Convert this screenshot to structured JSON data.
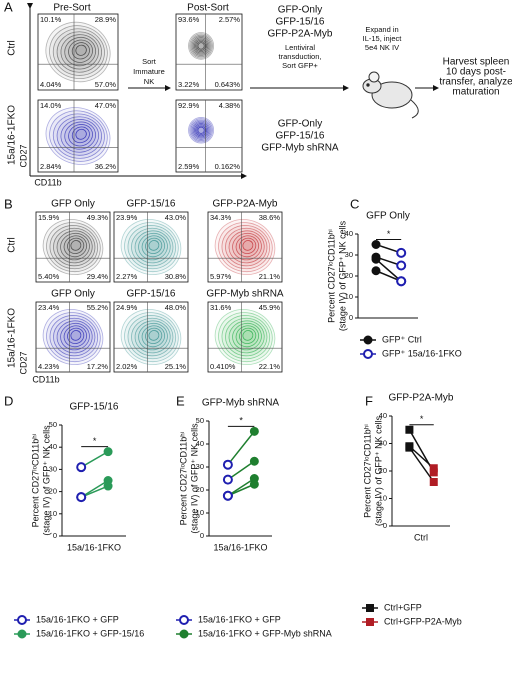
{
  "panel_a": {
    "label": "A",
    "pre_sort_title": "Pre-Sort",
    "post_sort_title": "Post-Sort",
    "row_labels": [
      "Ctrl",
      "15a/16-1FKO"
    ],
    "y_axis_label": "CD27",
    "x_axis_label": "CD11b",
    "sort_step": [
      "Sort",
      "Immature",
      "NK"
    ],
    "constructs_top": [
      "GFP-Only",
      "GFP-15/16",
      "GFP-P2A-Myb"
    ],
    "constructs_bottom": [
      "GFP-Only",
      "GFP-15/16",
      "GFP-Myb shRNA"
    ],
    "transduction_step": [
      "Lentiviral",
      "transduction,",
      "Sort GFP+"
    ],
    "expand_step": [
      "Expand in",
      "IL-15, inject",
      "5e4 NK IV"
    ],
    "harvest_step": [
      "Harvest spleen",
      "10 days post-",
      "transfer, analyze",
      "maturation"
    ],
    "plots": [
      {
        "quadrants": [
          "10.1%",
          "28.9%",
          "4.04%",
          "57.0%"
        ]
      },
      {
        "quadrants": [
          "93.6%",
          "2.57%",
          "3.22%",
          "0.643%"
        ]
      },
      {
        "quadrants": [
          "14.0%",
          "47.0%",
          "2.84%",
          "36.2%"
        ]
      },
      {
        "quadrants": [
          "92.9%",
          "4.38%",
          "2.59%",
          "0.162%"
        ]
      }
    ]
  },
  "panel_b": {
    "label": "B",
    "row_labels": [
      "Ctrl",
      "15a/16-1FKO"
    ],
    "y_axis_label": "CD27",
    "x_axis_label": "CD11b",
    "plots": [
      {
        "title": "GFP Only",
        "quadrants": [
          "15.9%",
          "49.3%",
          "5.40%",
          "29.4%"
        ]
      },
      {
        "title": "GFP-15/16",
        "quadrants": [
          "23.9%",
          "43.0%",
          "2.27%",
          "30.8%"
        ]
      },
      {
        "title": "GFP-P2A-Myb",
        "quadrants": [
          "34.3%",
          "38.6%",
          "5.97%",
          "21.1%"
        ]
      },
      {
        "title": "GFP Only",
        "quadrants": [
          "23.4%",
          "55.2%",
          "4.23%",
          "17.2%"
        ]
      },
      {
        "title": "GFP-15/16",
        "quadrants": [
          "24.9%",
          "48.0%",
          "2.02%",
          "25.1%"
        ]
      },
      {
        "title": "GFP-Myb shRNA",
        "quadrants": [
          "31.6%",
          "45.9%",
          "0.410%",
          "22.1%"
        ]
      }
    ]
  },
  "chart_data": [
    {
      "type": "paired",
      "label": "C",
      "title": "GFP Only",
      "ylabel": [
        "Percent CD27ˡᵒCD11bʰⁱ",
        "(stage IV) of GFP⁺ NK cells"
      ],
      "ylim": [
        0,
        40
      ],
      "yticks": [
        0,
        10,
        20,
        30,
        40
      ],
      "significance": "*",
      "pair_line_color": "#111",
      "series": [
        {
          "name": "GFP⁺ Ctrl",
          "color": "#111",
          "marker": "circle",
          "filled": true,
          "values": [
            35,
            29,
            28,
            22.5
          ]
        },
        {
          "name": "GFP⁺ 15a/16-1FKO",
          "color": "#1f1fb0",
          "marker": "circle",
          "filled": false,
          "values": [
            31,
            25,
            17.5,
            17.5
          ]
        }
      ]
    },
    {
      "type": "paired",
      "label": "D",
      "title": "GFP-15/16",
      "xlabel": "15a/16-1FKO",
      "ylabel": [
        "Percent CD27ˡᵒCD11bʰⁱ",
        "(stage IV) of GFP⁺ NK cells"
      ],
      "ylim": [
        0,
        50
      ],
      "yticks": [
        0,
        10,
        20,
        30,
        40,
        50
      ],
      "significance": "*",
      "pair_line_color": "#2a9a58",
      "series": [
        {
          "name": "15a/16-1FKO + GFP",
          "color": "#1f1fb0",
          "marker": "circle",
          "filled": false,
          "values": [
            31,
            17.5,
            17.5
          ]
        },
        {
          "name": "15a/16-1FKO + GFP-15/16",
          "color": "#2a9a58",
          "marker": "circle",
          "filled": true,
          "values": [
            38,
            25,
            22.5
          ]
        }
      ]
    },
    {
      "type": "paired",
      "label": "E",
      "title": "GFP-Myb shRNA",
      "xlabel": "15a/16-1FKO",
      "ylabel": [
        "Percent CD27ˡᵒCD11bʰⁱ",
        "(stage IV) of GFP⁺ NK cells"
      ],
      "ylim": [
        0,
        50
      ],
      "yticks": [
        0,
        10,
        20,
        30,
        40,
        50
      ],
      "significance": "*",
      "pair_line_color": "#1f7f2f",
      "series": [
        {
          "name": "15a/16-1FKO + GFP",
          "color": "#1f1fb0",
          "marker": "circle",
          "filled": false,
          "values": [
            31,
            24.5,
            17.5,
            17.5
          ]
        },
        {
          "name": "15a/16-1FKO + GFP-Myb shRNA",
          "color": "#1f7f2f",
          "marker": "circle",
          "filled": true,
          "values": [
            45.5,
            32.5,
            25,
            22.5
          ]
        }
      ]
    },
    {
      "type": "paired",
      "label": "F",
      "title": "GFP-P2A-Myb",
      "xlabel": "Ctrl",
      "ylabel": [
        "Percent CD27ˡᵒCD11bʰⁱ",
        "(stage IV) of GFP⁺ NK cells"
      ],
      "ylim": [
        0,
        40
      ],
      "yticks": [
        0,
        10,
        20,
        30,
        40
      ],
      "significance": "*",
      "pair_line_color": "#111",
      "series": [
        {
          "name": "Ctrl+GFP",
          "color": "#111",
          "marker": "square",
          "filled": true,
          "values": [
            35,
            29,
            28.5
          ]
        },
        {
          "name": "Ctrl+GFP-P2A-Myb",
          "color": "#b01c24",
          "marker": "square",
          "filled": true,
          "values": [
            19.5,
            21,
            16
          ]
        }
      ]
    }
  ]
}
